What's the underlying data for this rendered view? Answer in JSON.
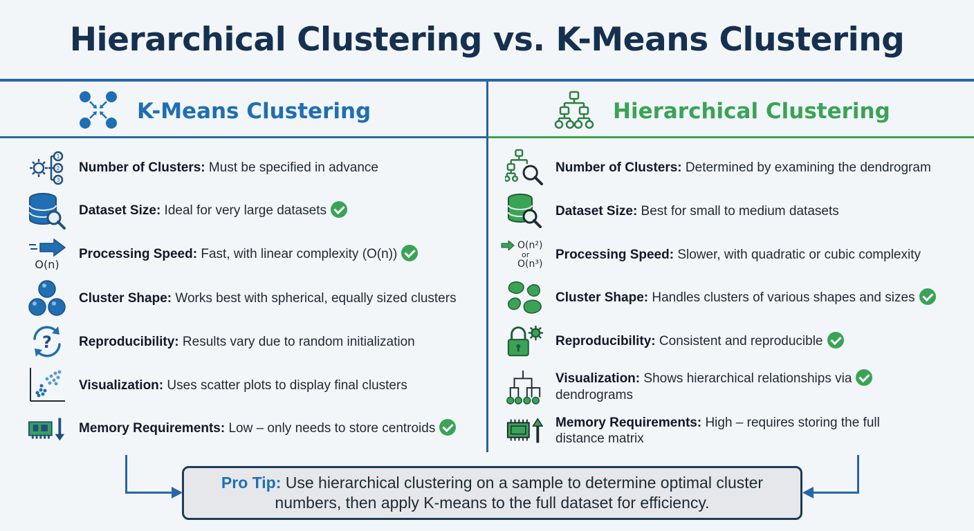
{
  "title": "Hierarchical Clustering vs. K-Means Clustering",
  "kmeans": {
    "heading": "K-Means Clustering",
    "rows": [
      {
        "label": "Number of Clusters:",
        "text": " Must be specified in advance",
        "check": false
      },
      {
        "label": "Dataset Size:",
        "text": " Ideal for very large datasets",
        "check": true
      },
      {
        "label": "Processing Speed:",
        "text": " Fast, with linear complexity (O(n))",
        "check": true
      },
      {
        "label": "Cluster Shape:",
        "text": " Works best with spherical, equally sized clusters",
        "check": false
      },
      {
        "label": "Reproducibility:",
        "text": " Results vary due to random initialization",
        "check": false
      },
      {
        "label": "Visualization:",
        "text": " Uses scatter plots to display final clusters",
        "check": false
      },
      {
        "label": "Memory Requirements:",
        "text": " Low – only needs to store centroids",
        "check": true
      }
    ],
    "speed_icon_text": "O(n)"
  },
  "hierarchical": {
    "heading": "Hierarchical Clustering",
    "rows": [
      {
        "label": "Number of Clusters:",
        "text": " Determined by examining the dendrogram",
        "check": false
      },
      {
        "label": "Dataset Size:",
        "text": " Best for small to medium datasets",
        "check": false
      },
      {
        "label": "Processing Speed:",
        "text": " Slower, with quadratic or cubic complexity",
        "check": false
      },
      {
        "label": "Cluster Shape:",
        "text": " Handles clusters of various shapes and sizes",
        "check": true
      },
      {
        "label": "Reproducibility:",
        "text": " Consistent and reproducible",
        "check": true
      },
      {
        "label": "Visualization:",
        "text": " Shows hierarchical relationships via",
        "text2": "dendrograms",
        "check": true
      },
      {
        "label": "Memory Requirements:",
        "text": " High – requires storing the full",
        "text2": "distance matrix",
        "check": false
      }
    ],
    "speed_icon_text_1": "O(n²)",
    "speed_icon_text_or": "or",
    "speed_icon_text_2": "O(n³)"
  },
  "tip": {
    "label": "Pro Tip:",
    "text": " Use hierarchical clustering on a sample to determine optimal cluster numbers, then apply K-means to the full dataset for efficiency."
  },
  "colors": {
    "kmeans": "#1f6fb2",
    "hierarchical": "#3aa356",
    "title": "#16304f",
    "check": "#3aa356"
  }
}
